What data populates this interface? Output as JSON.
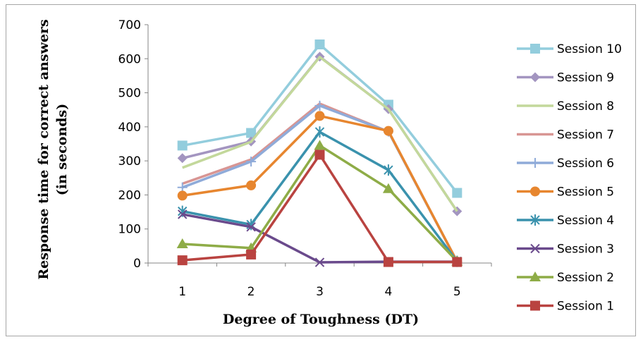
{
  "chart_data": {
    "type": "line",
    "title": "",
    "xlabel": "Degree of Toughness (DT)",
    "ylabel_line1": "Response time for correct answers",
    "ylabel_line2": "(in seconds)",
    "x": [
      1,
      2,
      3,
      4,
      5
    ],
    "ylim": [
      0,
      700
    ],
    "yticks": [
      0,
      100,
      200,
      300,
      400,
      500,
      600,
      700
    ],
    "grid": false,
    "legend_position": "right",
    "series": [
      {
        "name": "Session 1",
        "values": [
          8,
          25,
          318,
          3,
          3
        ],
        "color": "#b94340",
        "marker": "square"
      },
      {
        "name": "Session 2",
        "values": [
          56,
          44,
          345,
          218,
          5
        ],
        "color": "#8eac47",
        "marker": "triangle"
      },
      {
        "name": "Session 3",
        "values": [
          143,
          106,
          2,
          4,
          4
        ],
        "color": "#6a4a8c",
        "marker": "x"
      },
      {
        "name": "Session 4",
        "values": [
          152,
          113,
          385,
          273,
          5
        ],
        "color": "#3a92ad",
        "marker": "star"
      },
      {
        "name": "Session 5",
        "values": [
          198,
          228,
          432,
          388,
          4
        ],
        "color": "#e7862f",
        "marker": "circle"
      },
      {
        "name": "Session 6",
        "values": [
          222,
          298,
          462,
          386,
          4
        ],
        "color": "#8fabd9",
        "marker": "plus"
      },
      {
        "name": "Session 7",
        "values": [
          233,
          304,
          468,
          386,
          4
        ],
        "color": "#d89593",
        "marker": "none"
      },
      {
        "name": "Session 8",
        "values": [
          280,
          356,
          605,
          452,
          152
        ],
        "color": "#c3d89b",
        "marker": "none"
      },
      {
        "name": "Session 9",
        "values": [
          308,
          357,
          606,
          452,
          152
        ],
        "color": "#a395c0",
        "marker": "diamond"
      },
      {
        "name": "Session 10",
        "values": [
          345,
          382,
          642,
          465,
          206
        ],
        "color": "#93cddd",
        "marker": "square"
      }
    ]
  }
}
